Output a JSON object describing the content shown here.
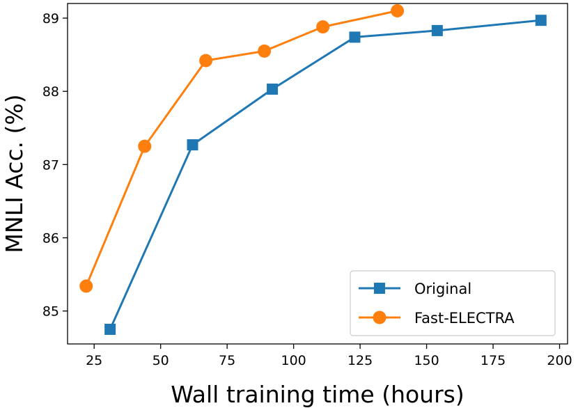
{
  "chart_data": {
    "type": "line",
    "title": "",
    "xlabel": "Wall training time (hours)",
    "ylabel": "MNLI Acc. (%)",
    "xlim": [
      15,
      203
    ],
    "ylim": [
      84.55,
      89.2
    ],
    "xticks": [
      25,
      50,
      75,
      100,
      125,
      150,
      175,
      200
    ],
    "yticks": [
      85,
      86,
      87,
      88,
      89
    ],
    "grid": false,
    "legend_position": "lower-right",
    "series": [
      {
        "name": "Original",
        "color": "#1f77b4",
        "marker": "square",
        "x": [
          31,
          62,
          92,
          123,
          154,
          193
        ],
        "y": [
          84.75,
          87.27,
          88.03,
          88.74,
          88.83,
          88.97
        ]
      },
      {
        "name": "Fast-ELECTRA",
        "color": "#ff7f0e",
        "marker": "circle",
        "x": [
          22,
          44,
          67,
          89,
          111,
          139
        ],
        "y": [
          85.34,
          87.25,
          88.42,
          88.55,
          88.88,
          89.1
        ]
      }
    ]
  }
}
